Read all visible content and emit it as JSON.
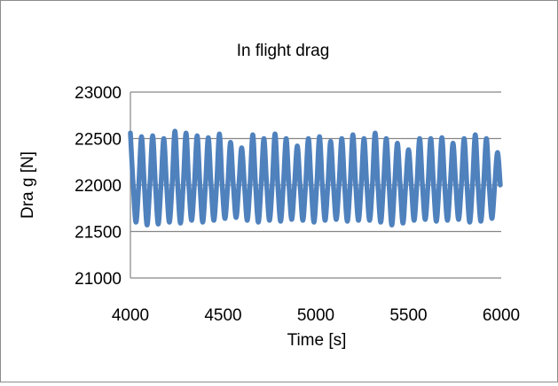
{
  "chart_data": {
    "type": "line",
    "title": "In flight drag",
    "xlabel": "Time [s]",
    "ylabel": "Dra g [N]",
    "xlim": [
      4000,
      6000
    ],
    "ylim": [
      21000,
      23000
    ],
    "xticks": [
      4000,
      4500,
      5000,
      5500,
      6000
    ],
    "yticks": [
      21000,
      21500,
      22000,
      22500,
      23000
    ],
    "grid": "horizontal",
    "legend": "none",
    "series": [
      {
        "color": "#4f81bd",
        "x": [
          4000,
          4015,
          4030,
          4045,
          4060,
          4075,
          4090,
          4105,
          4120,
          4135,
          4150,
          4165,
          4180,
          4195,
          4210,
          4225,
          4240,
          4255,
          4270,
          4285,
          4300,
          4315,
          4330,
          4345,
          4360,
          4375,
          4390,
          4405,
          4420,
          4435,
          4450,
          4465,
          4480,
          4495,
          4510,
          4525,
          4540,
          4555,
          4570,
          4585,
          4600,
          4615,
          4630,
          4645,
          4660,
          4675,
          4690,
          4705,
          4720,
          4735,
          4750,
          4765,
          4780,
          4795,
          4810,
          4825,
          4840,
          4855,
          4870,
          4885,
          4900,
          4915,
          4930,
          4945,
          4960,
          4975,
          4990,
          5005,
          5020,
          5035,
          5050,
          5065,
          5080,
          5095,
          5110,
          5125,
          5140,
          5155,
          5170,
          5185,
          5200,
          5215,
          5230,
          5245,
          5260,
          5275,
          5290,
          5305,
          5320,
          5335,
          5350,
          5365,
          5380,
          5395,
          5410,
          5425,
          5440,
          5455,
          5470,
          5485,
          5500,
          5515,
          5530,
          5545,
          5560,
          5575,
          5590,
          5605,
          5620,
          5635,
          5650,
          5665,
          5680,
          5695,
          5710,
          5725,
          5740,
          5755,
          5770,
          5785,
          5800,
          5815,
          5830,
          5845,
          5860,
          5875,
          5890,
          5905,
          5920,
          5935,
          5950,
          5965,
          5980,
          5995
        ],
        "y": [
          22560,
          22000,
          21600,
          22000,
          22520,
          22000,
          21570,
          22000,
          22530,
          22000,
          21580,
          22000,
          22500,
          22000,
          21600,
          22000,
          22580,
          22000,
          21590,
          22000,
          22560,
          22000,
          21620,
          22000,
          22530,
          22000,
          21600,
          22000,
          22510,
          22000,
          21620,
          22000,
          22550,
          22000,
          21640,
          22000,
          22460,
          22000,
          21650,
          22000,
          22400,
          22000,
          21620,
          22000,
          22540,
          22000,
          21600,
          22000,
          22500,
          22000,
          21620,
          22000,
          22550,
          22000,
          21610,
          22000,
          22500,
          22000,
          21630,
          22000,
          22420,
          22000,
          21620,
          22000,
          22500,
          22000,
          21600,
          22000,
          22520,
          22000,
          21620,
          22000,
          22470,
          22000,
          21630,
          22000,
          22500,
          22000,
          21610,
          22000,
          22540,
          22000,
          21620,
          22000,
          22500,
          22000,
          21620,
          22000,
          22560,
          22000,
          21600,
          22000,
          22500,
          22000,
          21570,
          22000,
          22450,
          22000,
          21590,
          22000,
          22380,
          22000,
          21620,
          22000,
          22500,
          22000,
          21630,
          22000,
          22500,
          22000,
          21610,
          22000,
          22510,
          22000,
          21620,
          22000,
          22450,
          22000,
          21630,
          22000,
          22500,
          22000,
          21600,
          22000,
          22540,
          22000,
          21610,
          22000,
          22500,
          22000,
          21640,
          22000,
          22350,
          22000
        ]
      }
    ]
  }
}
